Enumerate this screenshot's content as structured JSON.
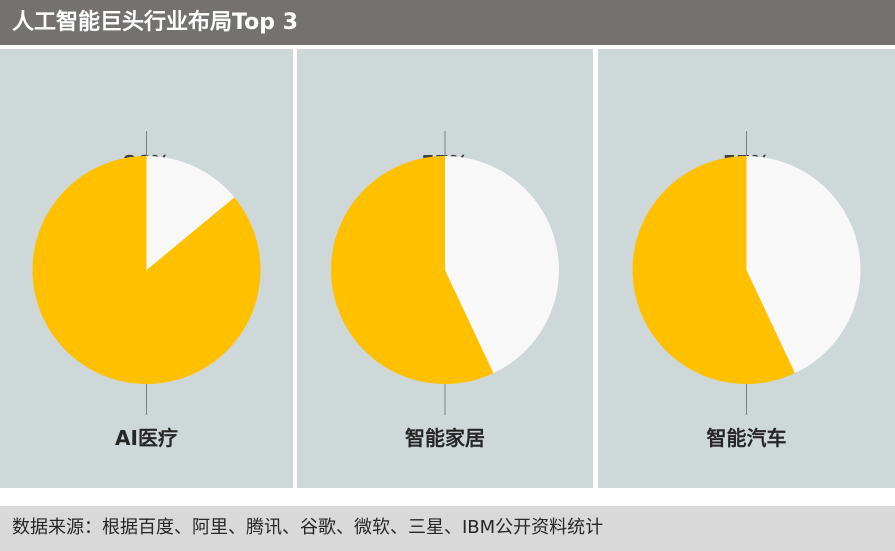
{
  "header": {
    "title": "人工智能巨头行业布局Top 3"
  },
  "chart_data": [
    {
      "type": "pie",
      "title": "AI医疗",
      "label": "86%",
      "values": [
        86,
        14
      ],
      "colors": [
        "#ffc000",
        "#f8f8f8"
      ]
    },
    {
      "type": "pie",
      "title": "智能家居",
      "label": "57%",
      "values": [
        57,
        43
      ],
      "colors": [
        "#ffc000",
        "#f8f8f8"
      ]
    },
    {
      "type": "pie",
      "title": "智能汽车",
      "label": "57%",
      "values": [
        57,
        43
      ],
      "colors": [
        "#ffc000",
        "#f8f8f8"
      ]
    }
  ],
  "footer": {
    "source": "数据来源：根据百度、阿里、腾讯、谷歌、微软、三星、IBM公开资料统计"
  },
  "colors": {
    "header_bg": "#767171",
    "panel_bg": "#cfd8d9",
    "accent": "#ffc000",
    "remainder": "#f8f8f8",
    "footer_bg": "#d9d9d9"
  }
}
